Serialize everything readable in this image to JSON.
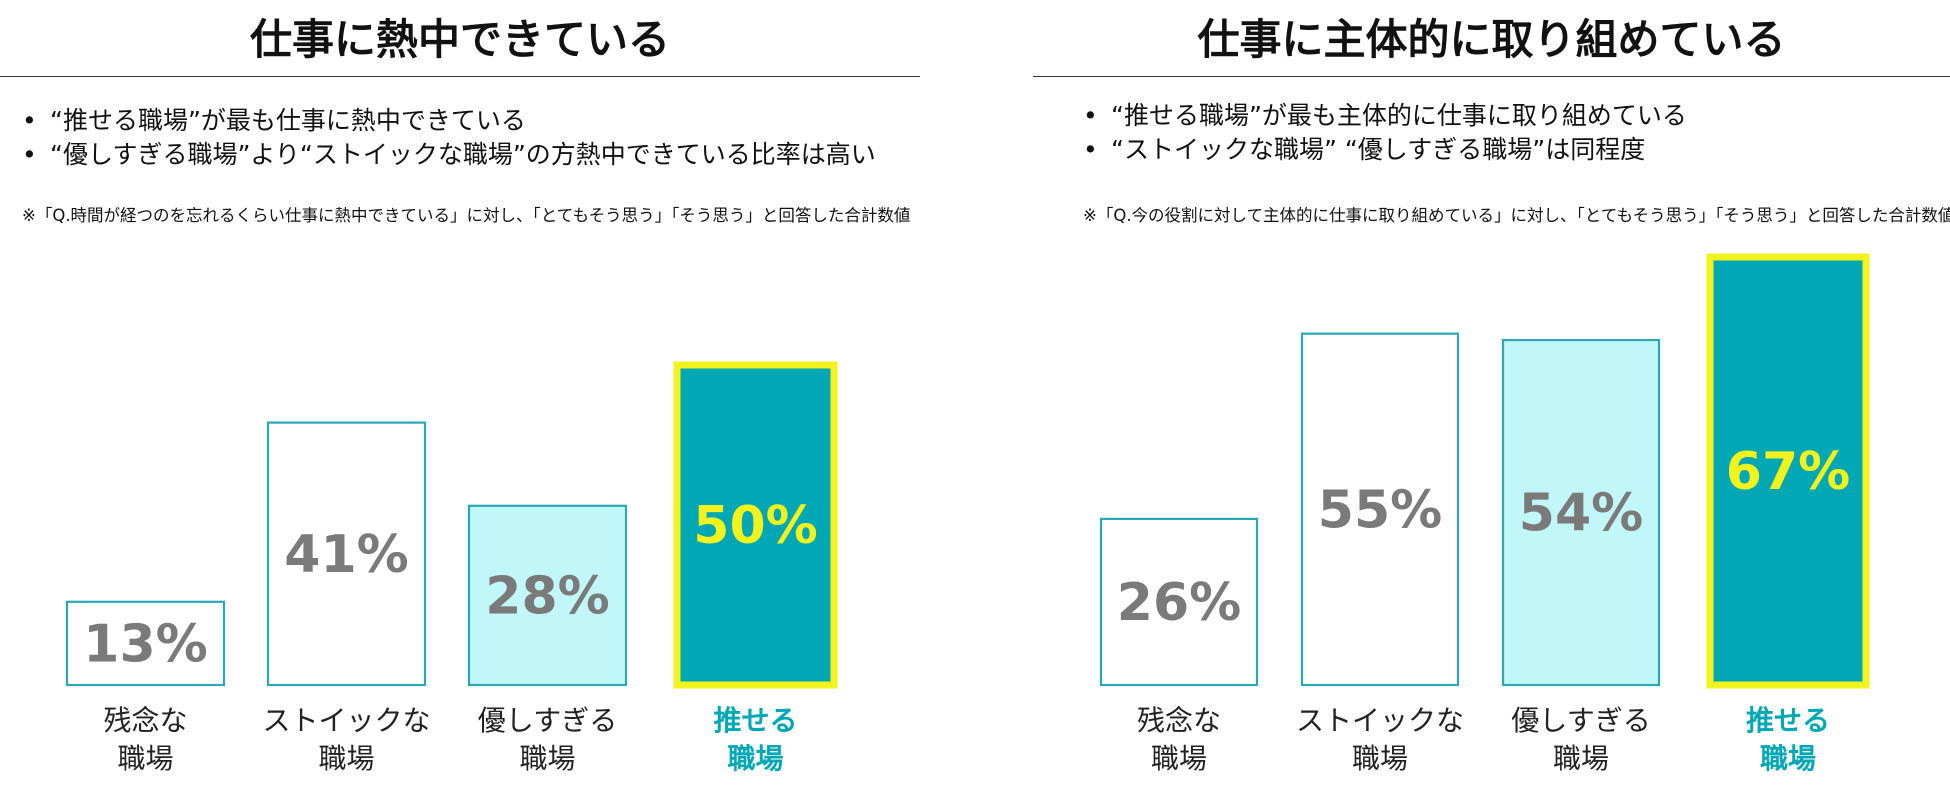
{
  "chart_data": [
    {
      "type": "bar",
      "title": "仕事に熱中できている",
      "bullets": [
        "“推せる職場”が最も仕事に熱中できている",
        "“優しすぎる職場”より“ストイックな職場”の方熱中できている比率は高い"
      ],
      "note": "※「Q.時間が経つのを忘れるくらい仕事に熱中できている」に対し、「とてもそう思う」「そう思う」と回答した合計数値",
      "categories": [
        [
          "残念な",
          "職場"
        ],
        [
          "ストイックな",
          "職場"
        ],
        [
          "優しすぎる",
          "職場"
        ],
        [
          "推せる",
          "職場"
        ]
      ],
      "values": [
        13,
        41,
        28,
        50
      ],
      "labels": [
        "13%",
        "41%",
        "28%",
        "50%"
      ],
      "highlight_index": 3,
      "ylim": [
        0,
        50
      ]
    },
    {
      "type": "bar",
      "title": "仕事に主体的に取り組めている",
      "bullets": [
        "“推せる職場”が最も主体的に仕事に取り組めている",
        "“ストイックな職場” “優しすぎる職場”は同程度"
      ],
      "note": "※「Q.今の役割に対して主体的に仕事に取り組めている」に対し、「とてもそう思う」「そう思う」と回答した合計数値",
      "categories": [
        [
          "残念な",
          "職場"
        ],
        [
          "ストイックな",
          "職場"
        ],
        [
          "優しすぎる",
          "職場"
        ],
        [
          "推せる",
          "職場"
        ]
      ],
      "values": [
        26,
        55,
        54,
        67
      ],
      "labels": [
        "26%",
        "55%",
        "54%",
        "67%"
      ],
      "highlight_index": 3,
      "ylim": [
        0,
        67
      ]
    }
  ],
  "colors": {
    "outline": "#2aa8b5",
    "fill_white": "#ffffff",
    "fill_light": "#c2f7fa",
    "fill_highlight": "#00a8b5",
    "highlight_border": "#f2f21c",
    "label_gray": "#7a7a7a",
    "label_highlight": "#f2f21c",
    "category_highlight": "#00a8b5"
  }
}
